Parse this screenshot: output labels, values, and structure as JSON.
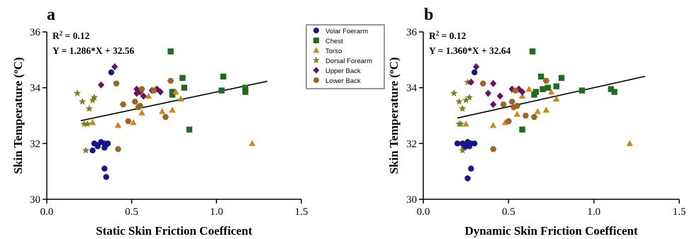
{
  "chart_data": [
    {
      "id": "a",
      "type": "scatter",
      "panel_letter": "a",
      "xlabel": "Static Skin Friction Coefficent",
      "ylabel": "Skin Temperature (",
      "ylabel_sup": "o",
      "ylabel_tail": "C)",
      "xlim": [
        0.0,
        1.5
      ],
      "ylim": [
        30,
        36
      ],
      "xticks": [
        "0.0",
        "0.5",
        "1.0",
        "1.5"
      ],
      "yticks": [
        "30",
        "32",
        "34",
        "36"
      ],
      "annotation_r2_prefix": "R",
      "annotation_r2_sup": "2",
      "annotation_r2_value": " = 0.12",
      "annotation_eq": "Y = 1.286*X + 32.56",
      "fit": {
        "slope": 1.286,
        "intercept": 32.56,
        "x_range": [
          0.2,
          1.3
        ]
      },
      "grid": false,
      "legend_position": "right, outside plot",
      "series": [
        {
          "name": "Volar Foerarm",
          "marker": "circle",
          "color": "#14178a",
          "points": [
            [
              0.27,
              31.75
            ],
            [
              0.28,
              32.0
            ],
            [
              0.3,
              31.95
            ],
            [
              0.32,
              32.05
            ],
            [
              0.34,
              32.0
            ],
            [
              0.34,
              31.85
            ],
            [
              0.35,
              31.95
            ],
            [
              0.36,
              32.0
            ],
            [
              0.34,
              31.1
            ],
            [
              0.35,
              30.8
            ],
            [
              0.38,
              34.55
            ],
            [
              0.3,
              31.9
            ]
          ]
        },
        {
          "name": "Chest",
          "marker": "square",
          "color": "#1f6b1f",
          "points": [
            [
              0.73,
              35.3
            ],
            [
              0.8,
              34.35
            ],
            [
              0.81,
              34.0
            ],
            [
              0.74,
              33.85
            ],
            [
              0.74,
              33.75
            ],
            [
              0.84,
              32.5
            ],
            [
              1.03,
              33.9
            ],
            [
              1.04,
              34.4
            ],
            [
              1.17,
              34.0
            ],
            [
              1.17,
              33.85
            ]
          ]
        },
        {
          "name": "Torso",
          "marker": "triangle",
          "color": "#d0841e",
          "points": [
            [
              0.27,
              32.75
            ],
            [
              0.42,
              32.65
            ],
            [
              0.51,
              32.75
            ],
            [
              0.56,
              33.1
            ],
            [
              0.6,
              33.7
            ],
            [
              0.68,
              33.15
            ],
            [
              0.74,
              33.2
            ],
            [
              0.76,
              33.85
            ],
            [
              0.79,
              33.6
            ],
            [
              0.64,
              33.95
            ],
            [
              1.21,
              32.0
            ]
          ]
        },
        {
          "name": "Dorsal Forearm",
          "marker": "star",
          "color": "#7f7f1a",
          "points": [
            [
              0.18,
              33.8
            ],
            [
              0.21,
              33.5
            ],
            [
              0.22,
              32.7
            ],
            [
              0.24,
              32.7
            ],
            [
              0.23,
              31.75
            ],
            [
              0.25,
              33.25
            ],
            [
              0.27,
              33.55
            ],
            [
              0.28,
              33.65
            ]
          ]
        },
        {
          "name": "Upper Back",
          "marker": "diamond",
          "color": "#6a1260",
          "points": [
            [
              0.32,
              34.1
            ],
            [
              0.4,
              34.75
            ],
            [
              0.53,
              33.95
            ],
            [
              0.55,
              33.85
            ],
            [
              0.57,
              33.7
            ],
            [
              0.62,
              33.9
            ],
            [
              0.65,
              33.95
            ],
            [
              0.67,
              33.85
            ],
            [
              0.53,
              33.8
            ]
          ]
        },
        {
          "name": "Lower Back",
          "marker": "hexagon",
          "color": "#9c6524",
          "points": [
            [
              0.41,
              34.15
            ],
            [
              0.45,
              33.4
            ],
            [
              0.48,
              32.8
            ],
            [
              0.42,
              31.8
            ],
            [
              0.52,
              33.5
            ],
            [
              0.54,
              33.3
            ],
            [
              0.55,
              33.35
            ],
            [
              0.63,
              33.9
            ],
            [
              0.7,
              32.95
            ],
            [
              0.73,
              34.25
            ],
            [
              0.56,
              33.95
            ]
          ]
        }
      ]
    },
    {
      "id": "b",
      "type": "scatter",
      "panel_letter": "b",
      "xlabel": "Dynamic Skin Friction Coefficent",
      "ylabel": "Skin Temperature (",
      "ylabel_sup": "o",
      "ylabel_tail": "C)",
      "xlim": [
        0.0,
        1.5
      ],
      "ylim": [
        30,
        36
      ],
      "xticks": [
        "0.0",
        "0.5",
        "1.0",
        "1.5"
      ],
      "yticks": [
        "30",
        "32",
        "34",
        "36"
      ],
      "annotation_r2_prefix": "R",
      "annotation_r2_sup": "2",
      "annotation_r2_value": " = 0.12",
      "annotation_eq": "Y = 1.360*X + 32.64",
      "fit": {
        "slope": 1.36,
        "intercept": 32.64,
        "x_range": [
          0.2,
          1.3
        ]
      },
      "grid": false,
      "series": [
        {
          "name": "Volar Foerarm",
          "marker": "circle",
          "color": "#14178a",
          "points": [
            [
              0.2,
              32.0
            ],
            [
              0.23,
              32.0
            ],
            [
              0.24,
              31.85
            ],
            [
              0.26,
              32.05
            ],
            [
              0.27,
              31.9
            ],
            [
              0.28,
              32.0
            ],
            [
              0.3,
              32.0
            ],
            [
              0.28,
              31.1
            ],
            [
              0.26,
              30.75
            ],
            [
              0.3,
              34.55
            ],
            [
              0.25,
              31.95
            ]
          ]
        },
        {
          "name": "Chest",
          "marker": "square",
          "color": "#1f6b1f",
          "points": [
            [
              0.64,
              35.3
            ],
            [
              0.69,
              34.4
            ],
            [
              0.73,
              34.0
            ],
            [
              0.66,
              33.85
            ],
            [
              0.65,
              33.75
            ],
            [
              0.7,
              33.95
            ],
            [
              0.78,
              34.05
            ],
            [
              0.81,
              34.35
            ],
            [
              0.58,
              32.5
            ],
            [
              0.93,
              33.9
            ],
            [
              1.1,
              33.95
            ],
            [
              1.12,
              33.85
            ]
          ]
        },
        {
          "name": "Torso",
          "marker": "triangle",
          "color": "#d0841e",
          "points": [
            [
              0.25,
              32.7
            ],
            [
              0.41,
              32.65
            ],
            [
              0.48,
              32.75
            ],
            [
              0.55,
              33.05
            ],
            [
              0.58,
              33.7
            ],
            [
              0.62,
              33.95
            ],
            [
              0.67,
              33.15
            ],
            [
              0.72,
              33.2
            ],
            [
              0.75,
              33.85
            ],
            [
              0.78,
              33.6
            ],
            [
              1.21,
              32.0
            ]
          ]
        },
        {
          "name": "Dorsal Forearm",
          "marker": "star",
          "color": "#7f7f1a",
          "points": [
            [
              0.18,
              33.8
            ],
            [
              0.21,
              33.5
            ],
            [
              0.21,
              32.7
            ],
            [
              0.22,
              32.7
            ],
            [
              0.23,
              31.75
            ],
            [
              0.23,
              33.25
            ],
            [
              0.25,
              33.55
            ],
            [
              0.27,
              33.65
            ],
            [
              0.26,
              34.2
            ]
          ]
        },
        {
          "name": "Upper Back",
          "marker": "diamond",
          "color": "#6a1260",
          "points": [
            [
              0.28,
              34.2
            ],
            [
              0.31,
              34.75
            ],
            [
              0.38,
              33.8
            ],
            [
              0.41,
              33.4
            ],
            [
              0.45,
              33.7
            ],
            [
              0.52,
              33.95
            ],
            [
              0.56,
              33.95
            ],
            [
              0.58,
              33.85
            ],
            [
              0.41,
              34.15
            ]
          ]
        },
        {
          "name": "Lower Back",
          "marker": "hexagon",
          "color": "#9c6524",
          "points": [
            [
              0.35,
              34.15
            ],
            [
              0.47,
              33.4
            ],
            [
              0.5,
              32.8
            ],
            [
              0.41,
              31.8
            ],
            [
              0.52,
              33.5
            ],
            [
              0.53,
              33.3
            ],
            [
              0.54,
              33.9
            ],
            [
              0.6,
              33.0
            ],
            [
              0.65,
              32.95
            ],
            [
              0.72,
              34.25
            ],
            [
              0.55,
              33.35
            ]
          ]
        }
      ]
    }
  ],
  "legend": {
    "items": [
      {
        "label": "Volar Foerarm",
        "marker": "circle",
        "color": "#14178a"
      },
      {
        "label": "Chest",
        "marker": "square",
        "color": "#1f6b1f"
      },
      {
        "label": "Torso",
        "marker": "triangle",
        "color": "#d0841e"
      },
      {
        "label": "Dorsal Forearm",
        "marker": "star",
        "color": "#7f7f1a"
      },
      {
        "label": "Upper Back",
        "marker": "diamond",
        "color": "#6a1260"
      },
      {
        "label": "Lower Back",
        "marker": "hexagon",
        "color": "#9c6524"
      }
    ]
  }
}
